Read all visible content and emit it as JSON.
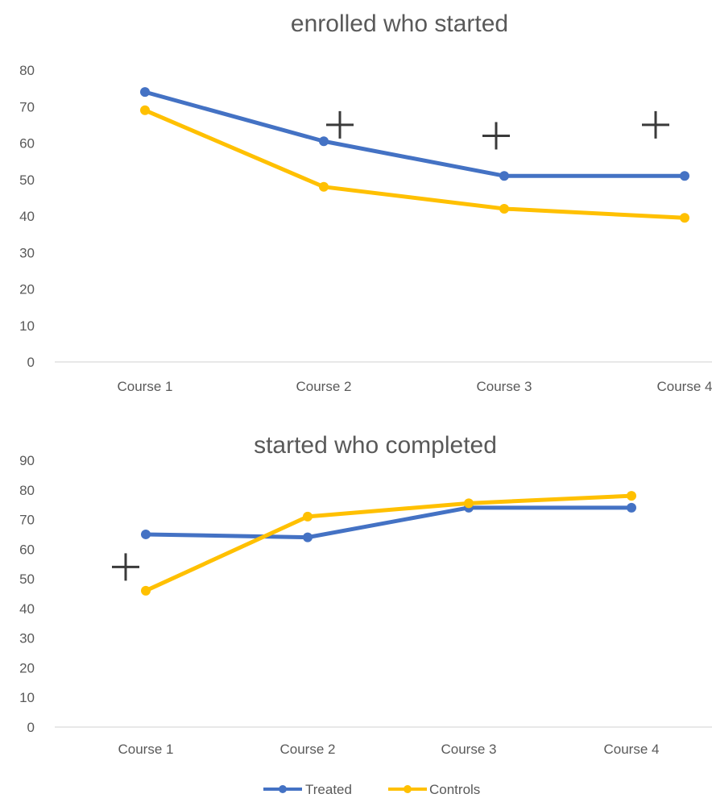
{
  "colors": {
    "treated": "#4472C4",
    "controls": "#FFC000",
    "axis": "#D9D9D9",
    "text": "#595959",
    "marker": "#3A3A3A"
  },
  "legend": {
    "treated": "Treated",
    "controls": "Controls"
  },
  "chart_data": [
    {
      "type": "line",
      "title": "enrolled who started",
      "categories": [
        "Course 1",
        "Course 2",
        "Course 3",
        "Course 4"
      ],
      "ylim": [
        0,
        80
      ],
      "yticks": [
        0,
        10,
        20,
        30,
        40,
        50,
        60,
        70,
        80
      ],
      "grid": false,
      "series": [
        {
          "name": "Treated",
          "values": [
            74,
            60.5,
            51,
            51
          ]
        },
        {
          "name": "Controls",
          "values": [
            69,
            48,
            42,
            39.5
          ]
        }
      ],
      "annotations": [
        {
          "text": "+",
          "category": "Course 2",
          "value": 65
        },
        {
          "text": "+",
          "category": "Course 3",
          "value": 62
        },
        {
          "text": "+",
          "category": "Course 4",
          "value": 65
        }
      ]
    },
    {
      "type": "line",
      "title": "started who completed",
      "categories": [
        "Course 1",
        "Course 2",
        "Course 3",
        "Course 4"
      ],
      "ylim": [
        0,
        90
      ],
      "yticks": [
        0,
        10,
        20,
        30,
        40,
        50,
        60,
        70,
        80,
        90
      ],
      "grid": false,
      "legend_position": "bottom",
      "series": [
        {
          "name": "Treated",
          "values": [
            65,
            64,
            74,
            74
          ]
        },
        {
          "name": "Controls",
          "values": [
            46,
            71,
            75.5,
            78
          ]
        }
      ],
      "annotations": [
        {
          "text": "+",
          "category": "Course 1",
          "value": 54
        }
      ]
    }
  ]
}
